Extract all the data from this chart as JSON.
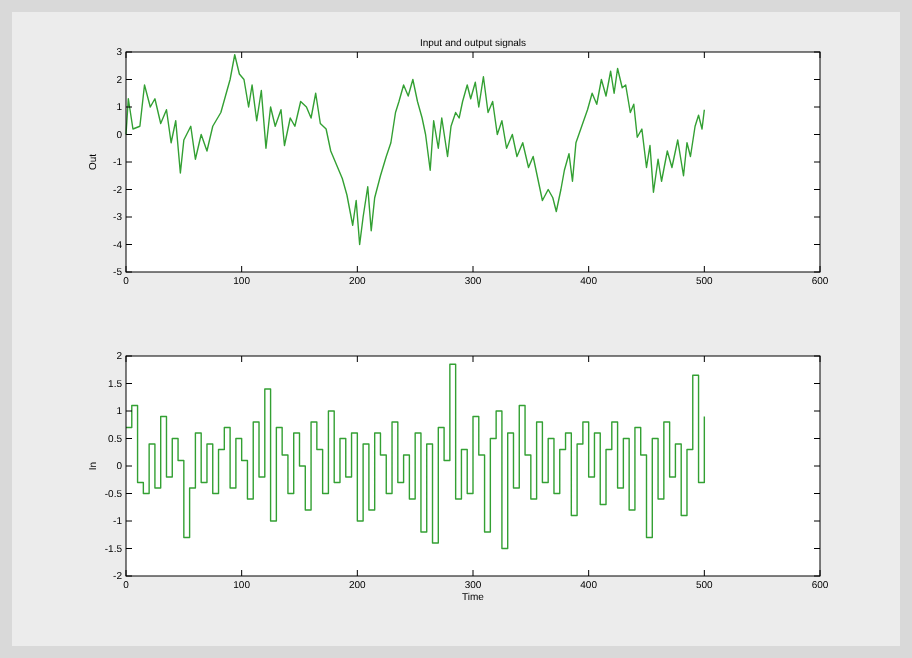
{
  "chart_data": [
    {
      "type": "line",
      "title": "Input and output signals",
      "ylabel": "Out",
      "xlim": [
        0,
        600
      ],
      "xticks": [
        0,
        100,
        200,
        300,
        400,
        500,
        600
      ],
      "ylim": [
        -5,
        3
      ],
      "yticks": [
        -5,
        -4,
        -3,
        -2,
        -1,
        0,
        1,
        2,
        3
      ],
      "grid": false,
      "series": [
        {
          "color": "#33a033",
          "x": [
            0,
            2,
            6,
            12,
            16,
            21,
            25,
            30,
            35,
            39,
            43,
            47,
            50,
            56,
            60,
            65,
            70,
            75,
            82,
            86,
            90,
            94,
            98,
            102,
            106,
            109,
            113,
            117,
            121,
            125,
            129,
            134,
            137,
            142,
            146,
            151,
            156,
            160,
            164,
            168,
            173,
            177,
            182,
            187,
            191,
            196,
            199,
            202,
            205,
            209,
            212,
            215,
            220,
            225,
            229,
            233,
            236,
            240,
            244,
            248,
            252,
            256,
            259,
            263,
            266,
            270,
            273,
            278,
            281,
            285,
            288,
            291,
            295,
            298,
            302,
            305,
            309,
            313,
            317,
            321,
            325,
            329,
            334,
            338,
            343,
            348,
            352,
            357,
            360,
            365,
            369,
            372,
            376,
            379,
            383,
            386,
            389,
            394,
            399,
            403,
            407,
            411,
            415,
            419,
            422,
            425,
            429,
            432,
            436,
            439,
            442,
            446,
            450,
            453,
            456,
            460,
            463,
            468,
            472,
            477,
            482,
            485,
            488,
            492,
            495,
            498,
            500
          ],
          "values": [
            0,
            1.3,
            0.2,
            0.3,
            1.8,
            1.0,
            1.3,
            0.4,
            0.9,
            -0.3,
            0.5,
            -1.4,
            -0.2,
            0.3,
            -0.9,
            0.0,
            -0.6,
            0.3,
            0.8,
            1.4,
            2.0,
            2.9,
            2.2,
            2.0,
            1.0,
            1.8,
            0.5,
            1.6,
            -0.5,
            1.0,
            0.3,
            0.9,
            -0.4,
            0.6,
            0.3,
            1.2,
            1.0,
            0.6,
            1.5,
            0.4,
            0.2,
            -0.6,
            -1.1,
            -1.6,
            -2.2,
            -3.3,
            -2.4,
            -4.0,
            -3.0,
            -1.9,
            -3.5,
            -2.3,
            -1.5,
            -0.8,
            -0.3,
            0.8,
            1.2,
            1.8,
            1.4,
            2.0,
            1.2,
            0.6,
            0.0,
            -1.3,
            0.5,
            -0.5,
            0.6,
            -0.8,
            0.3,
            0.8,
            0.6,
            1.2,
            1.8,
            1.3,
            1.9,
            1.0,
            2.1,
            0.8,
            1.2,
            0.0,
            0.5,
            -0.5,
            0.0,
            -0.8,
            -0.3,
            -1.2,
            -0.8,
            -1.8,
            -2.4,
            -2.0,
            -2.3,
            -2.8,
            -2.0,
            -1.3,
            -0.7,
            -1.7,
            -0.3,
            0.3,
            0.9,
            1.5,
            1.1,
            2.0,
            1.4,
            2.3,
            1.5,
            2.4,
            1.7,
            1.8,
            0.8,
            1.1,
            -0.1,
            0.2,
            -1.2,
            -0.4,
            -2.1,
            -0.9,
            -1.7,
            -0.6,
            -1.2,
            -0.2,
            -1.5,
            -0.3,
            -0.8,
            0.3,
            0.7,
            0.2,
            0.9
          ]
        }
      ]
    },
    {
      "type": "step",
      "xlabel": "Time",
      "ylabel": "In",
      "xlim": [
        0,
        600
      ],
      "xticks": [
        0,
        100,
        200,
        300,
        400,
        500,
        600
      ],
      "ylim": [
        -2,
        2
      ],
      "yticks": [
        -2,
        -1.5,
        -1,
        -0.5,
        0,
        0.5,
        1,
        1.5,
        2
      ],
      "grid": false,
      "series": [
        {
          "color": "#33a033",
          "x": [
            0,
            5,
            10,
            15,
            20,
            25,
            30,
            35,
            40,
            45,
            50,
            55,
            60,
            65,
            70,
            75,
            80,
            85,
            90,
            95,
            100,
            105,
            110,
            115,
            120,
            125,
            130,
            135,
            140,
            145,
            150,
            155,
            160,
            165,
            170,
            175,
            180,
            185,
            190,
            195,
            200,
            205,
            210,
            215,
            220,
            225,
            230,
            235,
            240,
            245,
            250,
            255,
            260,
            265,
            270,
            275,
            280,
            285,
            290,
            295,
            300,
            305,
            310,
            315,
            320,
            325,
            330,
            335,
            340,
            345,
            350,
            355,
            360,
            365,
            370,
            375,
            380,
            385,
            390,
            395,
            400,
            405,
            410,
            415,
            420,
            425,
            430,
            435,
            440,
            445,
            450,
            455,
            460,
            465,
            470,
            475,
            480,
            485,
            490,
            495,
            500
          ],
          "values": [
            0.7,
            1.1,
            -0.3,
            -0.5,
            0.4,
            -0.4,
            0.9,
            -0.2,
            0.5,
            0.1,
            -1.3,
            -0.4,
            0.6,
            -0.3,
            0.4,
            -0.5,
            0.3,
            0.7,
            -0.4,
            0.5,
            0.1,
            -0.6,
            0.8,
            -0.2,
            1.4,
            -1.0,
            0.7,
            0.2,
            -0.5,
            0.6,
            0.0,
            -0.8,
            0.8,
            0.3,
            -0.5,
            1.0,
            -0.3,
            0.5,
            -0.2,
            0.6,
            -1.0,
            0.4,
            -0.8,
            0.6,
            0.2,
            -0.5,
            0.8,
            -0.3,
            0.2,
            -0.6,
            0.6,
            -1.2,
            0.4,
            -1.4,
            0.7,
            0.1,
            1.85,
            -0.6,
            0.3,
            -0.5,
            0.9,
            0.2,
            -1.2,
            0.5,
            1.0,
            -1.5,
            0.6,
            -0.4,
            1.1,
            0.2,
            -0.6,
            0.8,
            -0.3,
            0.5,
            -0.5,
            0.3,
            0.6,
            -0.9,
            0.4,
            0.8,
            -0.2,
            0.6,
            -0.7,
            0.3,
            0.8,
            -0.4,
            0.5,
            -0.8,
            0.7,
            0.2,
            -1.3,
            0.5,
            -0.6,
            0.8,
            -0.2,
            0.4,
            -0.9,
            0.3,
            1.65,
            -0.3,
            0.9
          ]
        }
      ]
    }
  ]
}
